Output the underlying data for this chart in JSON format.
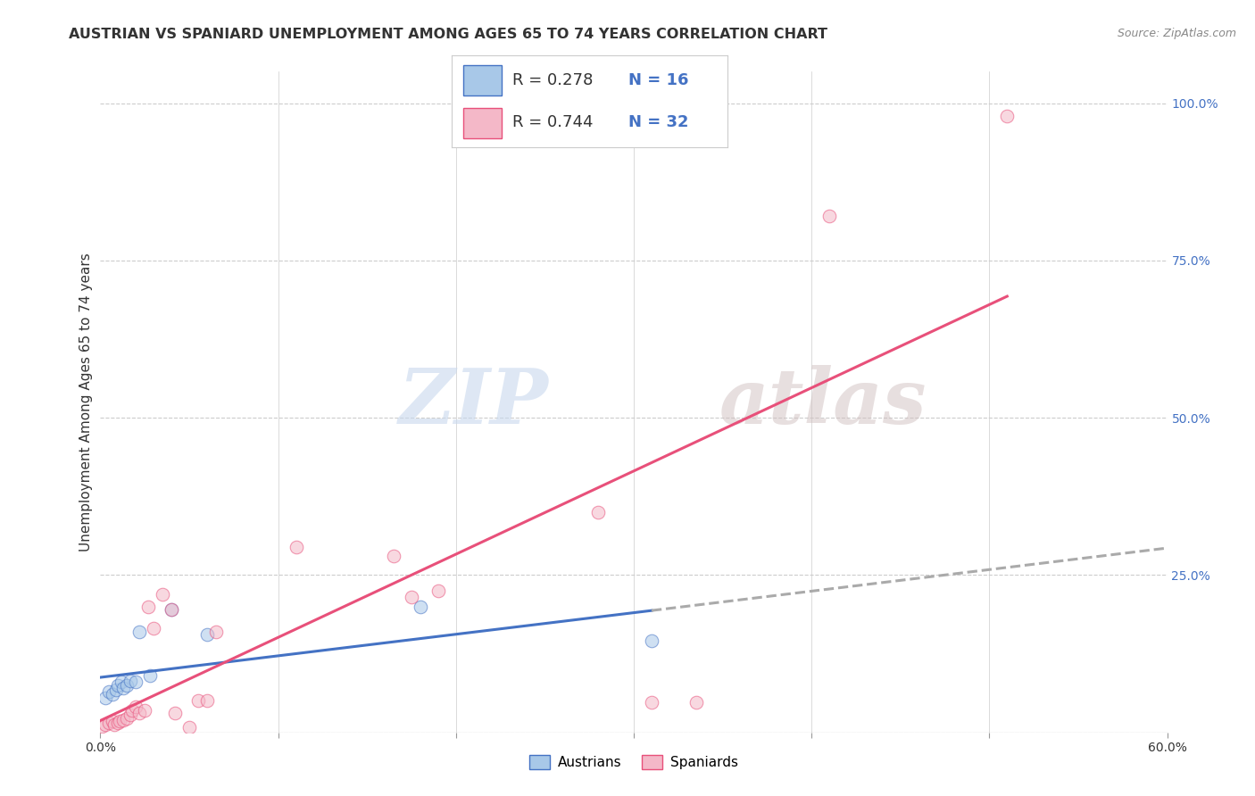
{
  "title": "AUSTRIAN VS SPANIARD UNEMPLOYMENT AMONG AGES 65 TO 74 YEARS CORRELATION CHART",
  "source": "Source: ZipAtlas.com",
  "ylabel": "Unemployment Among Ages 65 to 74 years",
  "xlim": [
    0.0,
    0.6
  ],
  "ylim": [
    0.0,
    1.05
  ],
  "xticks": [
    0.0,
    0.1,
    0.2,
    0.3,
    0.4,
    0.5,
    0.6
  ],
  "xticklabels": [
    "0.0%",
    "",
    "",
    "",
    "",
    "",
    "60.0%"
  ],
  "yticks_right": [
    0.0,
    0.25,
    0.5,
    0.75,
    1.0
  ],
  "yticklabels_right": [
    "",
    "25.0%",
    "50.0%",
    "75.0%",
    "100.0%"
  ],
  "grid_color": "#cccccc",
  "background_color": "#ffffff",
  "austrians_color": "#a8c8e8",
  "spaniards_color": "#f4b8c8",
  "austrians_line_color": "#4472c4",
  "spaniards_line_color": "#e8507a",
  "legend_R_austrians": "R = 0.278",
  "legend_N_austrians": "N = 16",
  "legend_R_spaniards": "R = 0.744",
  "legend_N_spaniards": "N = 32",
  "watermark_zip": "ZIP",
  "watermark_atlas": "atlas",
  "austrians_x": [
    0.003,
    0.005,
    0.007,
    0.009,
    0.01,
    0.012,
    0.013,
    0.015,
    0.017,
    0.02,
    0.022,
    0.028,
    0.04,
    0.06,
    0.18,
    0.31
  ],
  "austrians_y": [
    0.055,
    0.065,
    0.06,
    0.068,
    0.075,
    0.08,
    0.07,
    0.075,
    0.082,
    0.08,
    0.16,
    0.09,
    0.195,
    0.155,
    0.2,
    0.145
  ],
  "spaniards_x": [
    0.001,
    0.003,
    0.005,
    0.007,
    0.008,
    0.01,
    0.011,
    0.013,
    0.015,
    0.017,
    0.018,
    0.02,
    0.022,
    0.025,
    0.027,
    0.03,
    0.035,
    0.04,
    0.042,
    0.05,
    0.055,
    0.06,
    0.065,
    0.11,
    0.165,
    0.175,
    0.19,
    0.28,
    0.31,
    0.335,
    0.41,
    0.51
  ],
  "spaniards_y": [
    0.01,
    0.012,
    0.015,
    0.018,
    0.012,
    0.015,
    0.018,
    0.02,
    0.022,
    0.028,
    0.035,
    0.04,
    0.03,
    0.035,
    0.2,
    0.165,
    0.22,
    0.195,
    0.03,
    0.008,
    0.05,
    0.05,
    0.16,
    0.295,
    0.28,
    0.215,
    0.225,
    0.35,
    0.048,
    0.048,
    0.82,
    0.98
  ],
  "marker_size": 110,
  "alpha_scatter": 0.55,
  "title_fontsize": 11.5,
  "axis_label_fontsize": 11,
  "tick_fontsize": 10,
  "legend_fontsize": 13
}
